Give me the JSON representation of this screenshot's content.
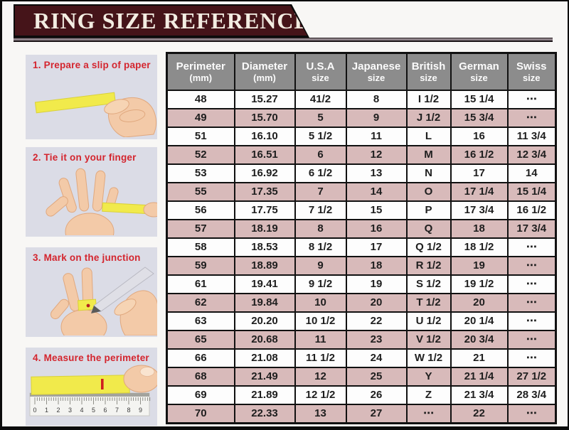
{
  "page": {
    "title": "RING SIZE REFERENCE",
    "colors": {
      "banner_maroon": "#451419",
      "banner_text": "#f3ede2",
      "table_header_gray": "#8c8c8c",
      "row_stripe_pink": "#d8baba",
      "row_white": "#fdfdfd",
      "step_label_red": "#d4252e",
      "step_panel_bg": "#dbdce6",
      "grid_black": "#111111",
      "paper_slip_yellow": "#f1ea4b"
    }
  },
  "steps": [
    {
      "label": "1. Prepare a slip of paper"
    },
    {
      "label": "2. Tie it on your finger"
    },
    {
      "label": "3. Mark on the junction"
    },
    {
      "label": "4. Measure the perimeter"
    }
  ],
  "ruler_numbers": [
    "0",
    "1",
    "2",
    "3",
    "4",
    "5",
    "6",
    "7",
    "8",
    "9"
  ],
  "chart_data": {
    "type": "table",
    "title": "RING SIZE REFERENCE",
    "columns": [
      {
        "label": "Perimeter",
        "sub": "(mm)"
      },
      {
        "label": "Diameter",
        "sub": "(mm)"
      },
      {
        "label": "U.S.A",
        "sub": "size"
      },
      {
        "label": "Japanese",
        "sub": "size"
      },
      {
        "label": "British",
        "sub": "size"
      },
      {
        "label": "German",
        "sub": "size"
      },
      {
        "label": "Swiss",
        "sub": "size"
      }
    ],
    "rows": [
      [
        "48",
        "15.27",
        "41/2",
        "8",
        "I 1/2",
        "15 1/4",
        "⋯"
      ],
      [
        "49",
        "15.70",
        "5",
        "9",
        "J 1/2",
        "15 3/4",
        "⋯"
      ],
      [
        "51",
        "16.10",
        "5 1/2",
        "11",
        "L",
        "16",
        "11 3/4"
      ],
      [
        "52",
        "16.51",
        "6",
        "12",
        "M",
        "16 1/2",
        "12 3/4"
      ],
      [
        "53",
        "16.92",
        "6 1/2",
        "13",
        "N",
        "17",
        "14"
      ],
      [
        "55",
        "17.35",
        "7",
        "14",
        "O",
        "17 1/4",
        "15 1/4"
      ],
      [
        "56",
        "17.75",
        "7 1/2",
        "15",
        "P",
        "17 3/4",
        "16 1/2"
      ],
      [
        "57",
        "18.19",
        "8",
        "16",
        "Q",
        "18",
        "17 3/4"
      ],
      [
        "58",
        "18.53",
        "8 1/2",
        "17",
        "Q 1/2",
        "18 1/2",
        "⋯"
      ],
      [
        "59",
        "18.89",
        "9",
        "18",
        "R 1/2",
        "19",
        "⋯"
      ],
      [
        "61",
        "19.41",
        "9 1/2",
        "19",
        "S 1/2",
        "19 1/2",
        "⋯"
      ],
      [
        "62",
        "19.84",
        "10",
        "20",
        "T 1/2",
        "20",
        "⋯"
      ],
      [
        "63",
        "20.20",
        "10 1/2",
        "22",
        "U 1/2",
        "20 1/4",
        "⋯"
      ],
      [
        "65",
        "20.68",
        "11",
        "23",
        "V 1/2",
        "20 3/4",
        "⋯"
      ],
      [
        "66",
        "21.08",
        "11 1/2",
        "24",
        "W 1/2",
        "21",
        "⋯"
      ],
      [
        "68",
        "21.49",
        "12",
        "25",
        "Y",
        "21 1/4",
        "27 1/2"
      ],
      [
        "69",
        "21.89",
        "12 1/2",
        "26",
        "Z",
        "21 3/4",
        "28 3/4"
      ],
      [
        "70",
        "22.33",
        "13",
        "27",
        "⋯",
        "22",
        "⋯"
      ]
    ],
    "striped": true,
    "stripe_note": "rows alternate white / pink starting with white"
  }
}
